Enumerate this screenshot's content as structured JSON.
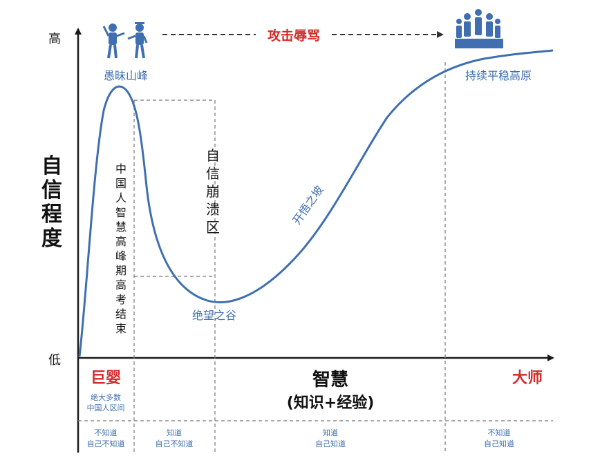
{
  "y_axis": {
    "high": "高",
    "low": "低",
    "label_chars": [
      "自",
      "信",
      "程",
      "度"
    ]
  },
  "x_axis": {
    "left": "巨婴",
    "right": "大师",
    "label_line1": "智慧",
    "label_line2": "(知识+经验)"
  },
  "peaks": {
    "top_arrow": "攻击辱骂",
    "stupid_peak": "愚昧山峰",
    "plateau": "持续平稳高原",
    "valley": "绝望之谷",
    "slope": "开悟之坡"
  },
  "vertical_notes": {
    "gaokao": [
      "中",
      "国",
      "人",
      "智",
      "慧",
      "高",
      "峰",
      "期",
      "高",
      "考",
      "结",
      "束"
    ],
    "collapse": [
      "自",
      "信",
      "崩",
      "溃",
      "区"
    ]
  },
  "bottom": {
    "majority": [
      "绝大多数",
      "中国人区间"
    ],
    "cells": [
      [
        "不知道",
        "自己不知道"
      ],
      [
        "知道",
        "自己不知道"
      ],
      [
        "知道",
        "自己知道"
      ],
      [
        "不知道",
        "自己知道"
      ]
    ]
  },
  "colors": {
    "curve": "#3f6fb0",
    "accent_red": "#d22a2a",
    "axis": "#1a1a1a",
    "dash": "#777777",
    "blue_text": "#3f6fb0"
  },
  "icons": {
    "left": "arguing-people-icon",
    "right": "podium-people-icon"
  }
}
